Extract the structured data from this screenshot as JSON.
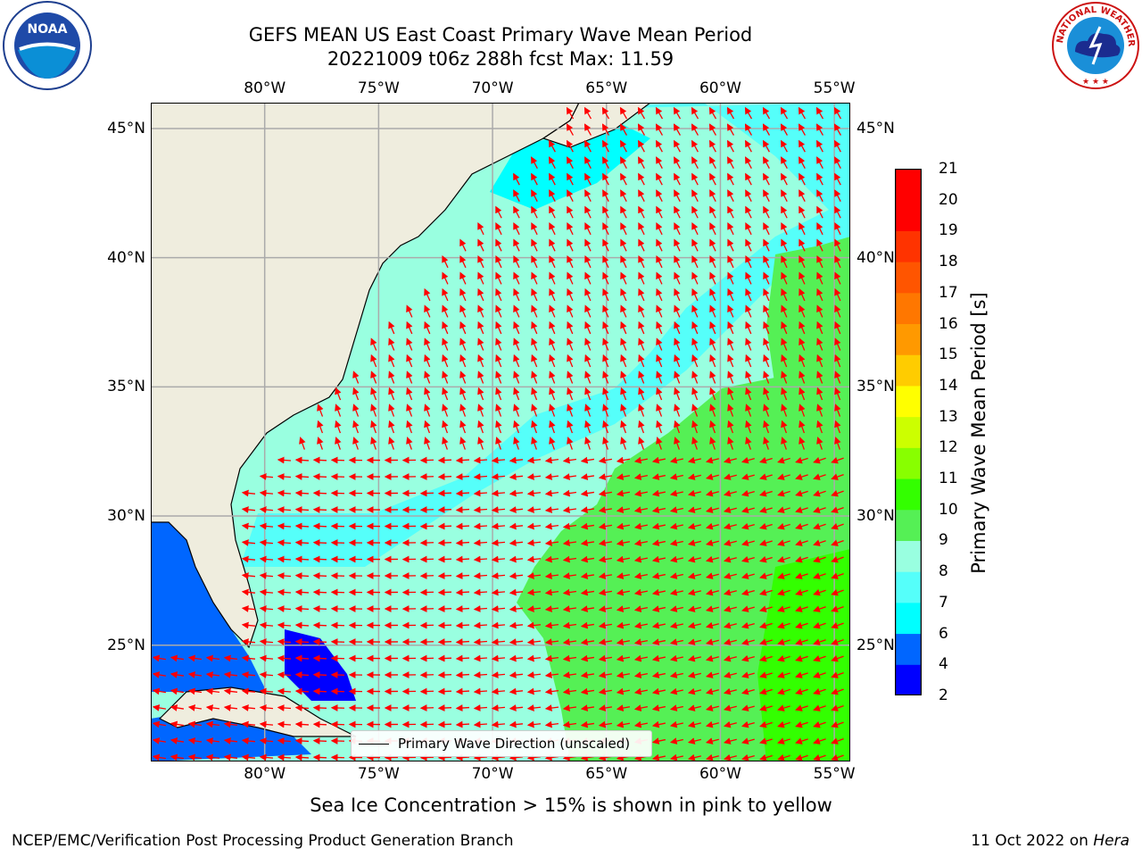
{
  "title": {
    "line1": "GEFS MEAN US East Coast Primary Wave Mean Period",
    "line2": "20221009 t06z 288h fcst   Max: 11.59"
  },
  "map": {
    "type": "map",
    "projection": "cylindrical",
    "extent": {
      "lon": [
        -85,
        -54.3
      ],
      "lat": [
        20.5,
        46
      ]
    },
    "lon_ticks": [
      -80,
      -75,
      -70,
      -65,
      -60,
      -55
    ],
    "lat_ticks": [
      25,
      30,
      35,
      40,
      45
    ],
    "lon_tick_labels": [
      "80°W",
      "75°W",
      "70°W",
      "65°W",
      "60°W",
      "55°W"
    ],
    "lat_tick_labels": [
      "25°N",
      "30°N",
      "35°N",
      "40°N",
      "45°N"
    ],
    "gridlines": true,
    "land_color": "#efedde",
    "arrow_color": "#ff0000",
    "variable": "Primary Wave Mean Period",
    "max_value": 11.59,
    "regions_description_values": {
      "open_atlantic_east_of_65W_south_of_33N": "10-11",
      "northeast_of_62W_north_of_37N": "10-11",
      "mid_atlantic_offshore": "8-10",
      "coastal_gulf_of_maine_and_shelf": "6-8",
      "gulf_of_mexico_and_bahamas_banks": "2-6"
    }
  },
  "colorbar": {
    "label": "Primary Wave Mean Period [s]",
    "ticks": [
      "2",
      "4",
      "6",
      "7",
      "8",
      "9",
      "10",
      "11",
      "12",
      "13",
      "14",
      "15",
      "16",
      "17",
      "18",
      "19",
      "20",
      "21"
    ],
    "colors": [
      "#0000ff",
      "#0066ff",
      "#00ffff",
      "#55fffa",
      "#99ffe0",
      "#55f055",
      "#33ff00",
      "#88ff00",
      "#ccff00",
      "#ffff00",
      "#ffcc00",
      "#ff9900",
      "#ff7700",
      "#ff5500",
      "#ff3300",
      "#ff0000",
      "#ff0000"
    ]
  },
  "legend": {
    "label": "Primary Wave Direction (unscaled)"
  },
  "caption": "Sea Ice Concentration > 15% is shown in pink to yellow",
  "footer": {
    "left": "NCEP/EMC/Verification Post Processing Product Generation Branch",
    "right_date": "11 Oct 2022 on",
    "right_machine": "Hera"
  },
  "logos": {
    "noaa": "NOAA",
    "nws": "NATIONAL WEATHER SERVICE"
  }
}
